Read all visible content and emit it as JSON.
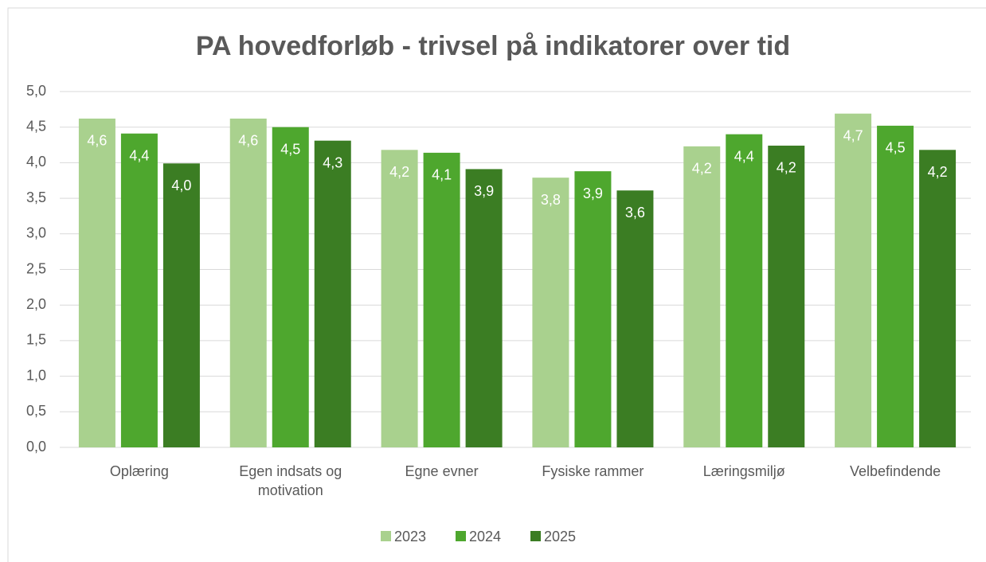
{
  "chart_data": {
    "type": "bar",
    "title": "PA hovedforløb - trivsel på indikatorer over tid",
    "categories": [
      "Oplæring",
      "Egen indsats og motivation",
      "Egne evner",
      "Fysiske rammer",
      "Læringsmiljø",
      "Velbefindende"
    ],
    "series": [
      {
        "name": "2023",
        "color": "#a9d18e",
        "values": [
          4.62,
          4.62,
          4.18,
          3.79,
          4.23,
          4.69
        ],
        "value_labels": [
          "4,6",
          "4,6",
          "4,2",
          "3,8",
          "4,2",
          "4,7"
        ]
      },
      {
        "name": "2024",
        "color": "#4ea72e",
        "values": [
          4.41,
          4.5,
          4.14,
          3.88,
          4.4,
          4.52
        ],
        "value_labels": [
          "4,4",
          "4,5",
          "4,1",
          "3,9",
          "4,4",
          "4,5"
        ]
      },
      {
        "name": "2025",
        "color": "#3b7d23",
        "values": [
          3.99,
          4.31,
          3.91,
          3.61,
          4.24,
          4.18
        ],
        "value_labels": [
          "4,0",
          "4,3",
          "3,9",
          "3,6",
          "4,2",
          "4,2"
        ]
      }
    ],
    "ylim": [
      0,
      5
    ],
    "yticks": [
      {
        "value": 0,
        "label": "0,0"
      },
      {
        "value": 0.5,
        "label": "0,5"
      },
      {
        "value": 1,
        "label": "1,0"
      },
      {
        "value": 1.5,
        "label": "1,5"
      },
      {
        "value": 2,
        "label": "2,0"
      },
      {
        "value": 2.5,
        "label": "2,5"
      },
      {
        "value": 3,
        "label": "3,0"
      },
      {
        "value": 3.5,
        "label": "3,5"
      },
      {
        "value": 4,
        "label": "4,0"
      },
      {
        "value": 4.5,
        "label": "4,5"
      },
      {
        "value": 5,
        "label": "5,0"
      }
    ],
    "grid": true,
    "legend": "bottom"
  }
}
